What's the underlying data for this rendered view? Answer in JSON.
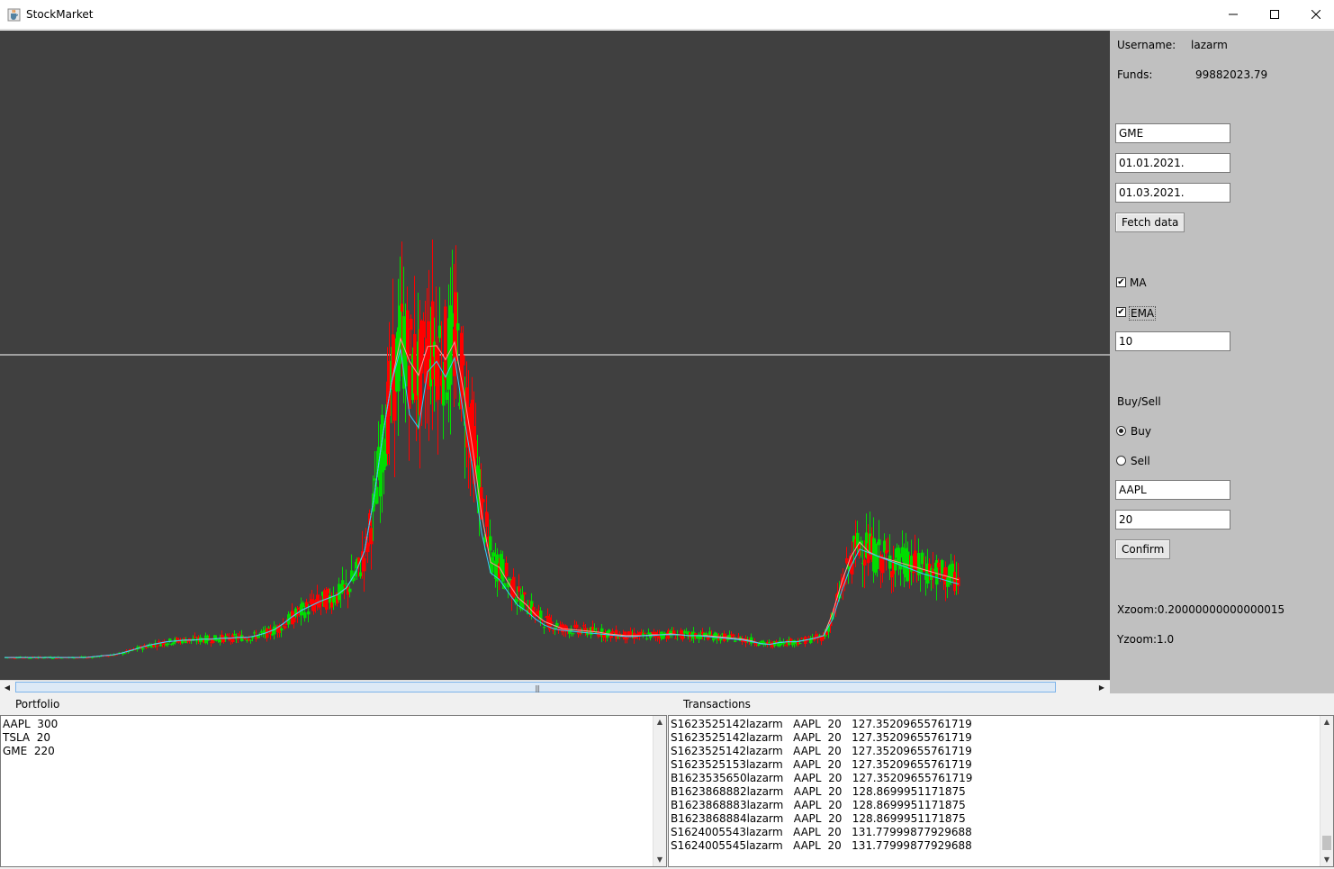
{
  "window": {
    "title": "StockMarket",
    "minimize_glyph": "—",
    "maximize_glyph": "☐",
    "close_glyph": "✕"
  },
  "side": {
    "username_label": "Username:",
    "username_value": "lazarm",
    "funds_label": "Funds:",
    "funds_value": "99882023.79",
    "symbol_value": "GME",
    "start_date_value": "01.01.2021.",
    "end_date_value": "01.03.2021.",
    "fetch_label": "Fetch data",
    "ma_label": "MA",
    "ma_checked": true,
    "ema_label": "EMA",
    "ema_checked": true,
    "period_value": "10",
    "buysell_label": "Buy/Sell",
    "buy_label": "Buy",
    "sell_label": "Sell",
    "buy_selected": true,
    "trade_symbol_value": "AAPL",
    "trade_amount_value": "20",
    "confirm_label": "Confirm",
    "xzoom_text": "Xzoom:0.20000000000000015",
    "yzoom_text": "Yzoom:1.0"
  },
  "portfolio": {
    "title": "Portfolio",
    "rows": [
      "AAPL  300",
      "TSLA  20",
      "GME  220"
    ]
  },
  "transactions": {
    "title": "Transactions",
    "rows": [
      "S1623525142lazarm   AAPL  20   127.35209655761719",
      "S1623525142lazarm   AAPL  20   127.35209655761719",
      "S1623525142lazarm   AAPL  20   127.35209655761719",
      "S1623525153lazarm   AAPL  20   127.35209655761719",
      "B1623535650lazarm   AAPL  20   127.35209655761719",
      "B1623868882lazarm   AAPL  20   128.8699951171875",
      "B1623868883lazarm   AAPL  20   128.8699951171875",
      "B1623868884lazarm   AAPL  20   128.8699951171875",
      "S1624005543lazarm   AAPL  20   131.77999877929688",
      "S1624005545lazarm   AAPL  20   131.77999877929688"
    ]
  },
  "colors": {
    "chart_bg": "#404040",
    "candle_up": "#00dd00",
    "candle_down": "#ff0000",
    "ma_line": "#ff9999",
    "ema_line": "#33ccff",
    "crosshair": "#ffffff"
  },
  "icons": {
    "app": "java-cup-icon",
    "checkbox_mark": "✔",
    "scroll_left": "◀",
    "scroll_right": "▶",
    "scroll_up": "▲",
    "scroll_down": "▼",
    "grip": "|||"
  },
  "chart_data": {
    "type": "line",
    "title": "",
    "xlabel": "",
    "ylabel": "",
    "grid": false,
    "x": [
      0,
      10,
      20,
      30,
      40,
      50,
      60,
      70,
      80,
      90,
      100,
      110,
      120,
      130,
      140,
      150,
      160,
      170,
      180,
      190,
      200,
      210,
      220,
      230,
      240,
      250,
      260,
      270,
      280,
      290,
      300,
      310,
      320,
      330,
      340,
      350,
      360,
      370,
      380,
      390,
      400,
      410,
      420,
      430,
      440,
      450,
      460,
      470,
      480,
      490,
      500,
      510,
      520,
      530,
      540,
      550,
      560,
      570,
      580,
      590,
      600,
      610,
      620,
      630,
      640,
      650,
      660,
      670,
      680,
      690,
      700,
      710,
      720,
      730,
      740,
      750,
      760,
      770,
      780,
      790,
      800,
      810,
      820,
      830,
      840,
      850,
      860,
      870,
      880,
      890,
      900,
      910,
      920,
      930,
      940,
      950,
      960,
      970,
      980,
      990,
      1000,
      1010,
      1020,
      1030,
      1040,
      1050,
      1060
    ],
    "series": [
      {
        "name": "MA",
        "values": [
          4,
          4,
          4,
          4,
          4,
          4,
          4,
          4,
          4,
          4,
          5,
          6,
          7,
          9,
          12,
          15,
          18,
          20,
          22,
          23,
          24,
          24,
          25,
          25,
          26,
          26,
          27,
          27,
          29,
          32,
          36,
          43,
          51,
          58,
          63,
          68,
          72,
          76,
          84,
          101,
          126,
          184,
          257,
          319,
          369,
          343,
          327,
          360,
          361,
          345,
          365,
          309,
          244,
          168,
          113,
          107,
          89,
          73,
          64,
          53,
          45,
          41,
          37,
          36,
          35,
          34,
          33,
          31,
          30,
          29,
          29,
          29,
          30,
          30,
          31,
          30,
          29,
          29,
          29,
          28,
          27,
          26,
          25,
          23,
          20,
          19,
          21,
          22,
          22,
          24,
          26,
          29,
          55,
          90,
          119,
          136,
          125,
          120,
          117,
          114,
          111,
          108,
          105,
          102,
          99,
          96,
          93
        ]
      },
      {
        "name": "EMA",
        "values": [
          4,
          4,
          4,
          4,
          4,
          4,
          4,
          4,
          4,
          4,
          5,
          6,
          7,
          9,
          12,
          15,
          18,
          20,
          22,
          23,
          24,
          24,
          25,
          25,
          26,
          26,
          27,
          27,
          29,
          32,
          36,
          43,
          51,
          58,
          63,
          68,
          72,
          76,
          84,
          101,
          126,
          184,
          257,
          319,
          357,
          282,
          267,
          331,
          343,
          325,
          347,
          282,
          221,
          147,
          101,
          93,
          78,
          64,
          57,
          48,
          41,
          37,
          35,
          34,
          33,
          32,
          31,
          30,
          29,
          28,
          28,
          29,
          29,
          30,
          30,
          30,
          29,
          29,
          28,
          27,
          26,
          25,
          24,
          22,
          20,
          19,
          21,
          22,
          22,
          24,
          26,
          29,
          48,
          80,
          108,
          128,
          124,
          120,
          116,
          112,
          108,
          104,
          100,
          97,
          94,
          91,
          88
        ]
      }
    ]
  }
}
